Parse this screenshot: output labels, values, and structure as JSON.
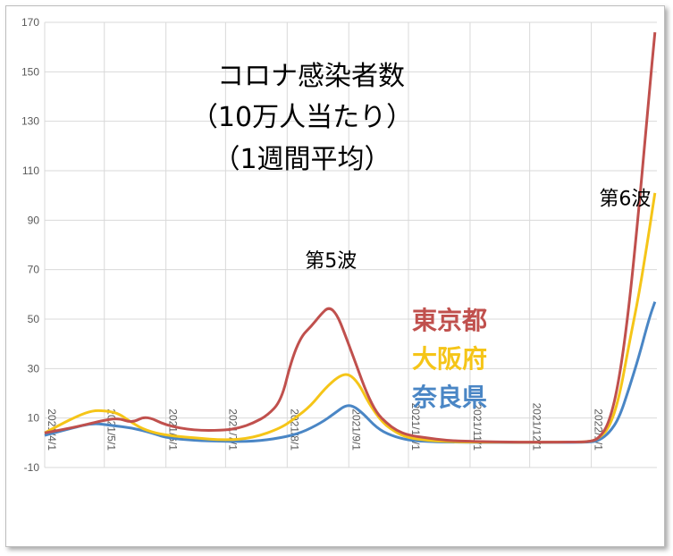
{
  "chart_data": {
    "type": "line",
    "title_lines": [
      "コロナ感染者数",
      "（10万人当たり）",
      "（1週間平均）"
    ],
    "xlabel": "",
    "ylabel": "",
    "ylim": [
      -10,
      170
    ],
    "yticks": [
      -10,
      10,
      30,
      50,
      70,
      90,
      110,
      130,
      150,
      170
    ],
    "xlim": [
      "2021-04-01",
      "2022-02-03"
    ],
    "x_ticks": [
      {
        "date": "2021-04-01",
        "label": "2021/4/1"
      },
      {
        "date": "2021-05-01",
        "label": "2021/5/1"
      },
      {
        "date": "2021-06-01",
        "label": "2021/6/1"
      },
      {
        "date": "2021-07-01",
        "label": "2021/7/1"
      },
      {
        "date": "2021-08-01",
        "label": "2021/8/1"
      },
      {
        "date": "2021-09-01",
        "label": "2021/9/1"
      },
      {
        "date": "2021-10-01",
        "label": "2021/10/1"
      },
      {
        "date": "2021-11-01",
        "label": "2021/11/1"
      },
      {
        "date": "2021-12-01",
        "label": "2021/12/1"
      },
      {
        "date": "2022-01-01",
        "label": "2022/1/1"
      }
    ],
    "grid": true,
    "annotations": [
      {
        "text": "第5波",
        "date": "2021-08-23",
        "y": 71
      },
      {
        "text": "第6波",
        "date": "2022-01-18",
        "y": 96
      }
    ],
    "series": [
      {
        "name": "東京都",
        "color": "#c0504d",
        "x": [
          "2021-04-01",
          "2021-04-15",
          "2021-04-30",
          "2021-05-08",
          "2021-05-15",
          "2021-05-22",
          "2021-06-01",
          "2021-06-15",
          "2021-06-30",
          "2021-07-08",
          "2021-07-15",
          "2021-07-22",
          "2021-07-29",
          "2021-08-03",
          "2021-08-08",
          "2021-08-13",
          "2021-08-18",
          "2021-08-22",
          "2021-08-26",
          "2021-08-30",
          "2021-09-05",
          "2021-09-10",
          "2021-09-15",
          "2021-09-20",
          "2021-09-25",
          "2021-10-01",
          "2021-10-10",
          "2021-10-20",
          "2021-11-01",
          "2021-12-01",
          "2021-12-25",
          "2022-01-01",
          "2022-01-05",
          "2022-01-10",
          "2022-01-15",
          "2022-01-20",
          "2022-01-25",
          "2022-01-30",
          "2022-02-02"
        ],
        "y": [
          4,
          6,
          9,
          10,
          8,
          11,
          7,
          5,
          5,
          6,
          8,
          11,
          17,
          33,
          43,
          47,
          52,
          55,
          52,
          44,
          31,
          20,
          12,
          8,
          5,
          3,
          2,
          1,
          0.5,
          0.2,
          0.3,
          0.5,
          2,
          8,
          25,
          55,
          95,
          140,
          166
        ]
      },
      {
        "name": "大阪府",
        "color": "#f5c518",
        "x": [
          "2021-04-01",
          "2021-04-08",
          "2021-04-18",
          "2021-04-25",
          "2021-05-01",
          "2021-05-08",
          "2021-05-15",
          "2021-05-22",
          "2021-06-01",
          "2021-06-15",
          "2021-07-01",
          "2021-07-15",
          "2021-07-29",
          "2021-08-05",
          "2021-08-13",
          "2021-08-20",
          "2021-08-27",
          "2021-09-01",
          "2021-09-06",
          "2021-09-11",
          "2021-09-18",
          "2021-09-25",
          "2021-10-01",
          "2021-10-10",
          "2021-10-20",
          "2021-11-01",
          "2021-12-01",
          "2021-12-25",
          "2022-01-01",
          "2022-01-05",
          "2022-01-10",
          "2022-01-15",
          "2022-01-20",
          "2022-01-25",
          "2022-01-30",
          "2022-02-02"
        ],
        "y": [
          4,
          7,
          11,
          13,
          13,
          12,
          8,
          5,
          3,
          2,
          1,
          2,
          6,
          10,
          15,
          22,
          27,
          28,
          24,
          16,
          8,
          4,
          2,
          1,
          0.5,
          0.3,
          0.2,
          0.3,
          0.5,
          2,
          6,
          18,
          40,
          60,
          85,
          101
        ]
      },
      {
        "name": "奈良県",
        "color": "#4a86c5",
        "x": [
          "2021-04-01",
          "2021-04-15",
          "2021-04-25",
          "2021-05-05",
          "2021-05-15",
          "2021-05-25",
          "2021-06-01",
          "2021-06-15",
          "2021-07-01",
          "2021-07-15",
          "2021-07-29",
          "2021-08-08",
          "2021-08-18",
          "2021-08-25",
          "2021-08-30",
          "2021-09-03",
          "2021-09-08",
          "2021-09-15",
          "2021-09-22",
          "2021-10-01",
          "2021-10-10",
          "2021-10-20",
          "2021-11-01",
          "2021-12-01",
          "2021-12-25",
          "2022-01-01",
          "2022-01-05",
          "2022-01-10",
          "2022-01-15",
          "2022-01-20",
          "2022-01-25",
          "2022-01-30",
          "2022-02-02"
        ],
        "y": [
          3,
          6,
          8,
          7,
          6,
          4,
          2,
          1,
          0.5,
          0.5,
          2,
          4,
          8,
          12,
          15,
          15,
          12,
          6,
          3,
          1,
          0.5,
          0.3,
          0.2,
          0.1,
          0.2,
          0.3,
          1,
          4,
          10,
          22,
          35,
          50,
          57
        ]
      }
    ]
  }
}
